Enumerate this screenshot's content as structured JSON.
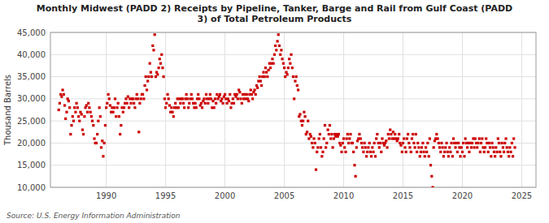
{
  "chart_data": {
    "type": "scatter",
    "title": "Monthly Midwest (PADD 2) Receipts by Pipeline, Tanker, Barge and Rail from Gulf Coast (PADD\n3) of Total Petroleum Products",
    "ylabel": "Thousand Barrels",
    "annotations": [
      "Source: U.S. Energy Information Administration"
    ],
    "color": "#cc0000",
    "marker": "square",
    "grid": true,
    "xlim": [
      1985.3,
      2026.2
    ],
    "ylim": [
      10000,
      45000
    ],
    "xticks": [
      1990,
      1995,
      2000,
      2005,
      2010,
      2015,
      2020,
      2025
    ],
    "yticks": [
      {
        "value": 10000,
        "label": "10,000"
      },
      {
        "value": 15000,
        "label": "15,000"
      },
      {
        "value": 20000,
        "label": "20,000"
      },
      {
        "value": 25000,
        "label": "25,000"
      },
      {
        "value": 30000,
        "label": "30,000"
      },
      {
        "value": 35000,
        "label": "35,000"
      },
      {
        "value": 40000,
        "label": "40,000"
      },
      {
        "value": 45000,
        "label": "45,000"
      }
    ],
    "x": [
      1986.0,
      1986.08,
      1986.17,
      1986.25,
      1986.33,
      1986.42,
      1986.5,
      1986.58,
      1986.67,
      1986.75,
      1986.83,
      1986.92,
      1987.0,
      1987.08,
      1987.17,
      1987.25,
      1987.33,
      1987.42,
      1987.5,
      1987.58,
      1987.67,
      1987.75,
      1987.83,
      1987.92,
      1988.0,
      1988.08,
      1988.17,
      1988.25,
      1988.33,
      1988.42,
      1988.5,
      1988.58,
      1988.67,
      1988.75,
      1988.83,
      1988.92,
      1989.0,
      1989.08,
      1989.17,
      1989.25,
      1989.33,
      1989.42,
      1989.5,
      1989.58,
      1989.67,
      1989.75,
      1989.83,
      1989.92,
      1990.0,
      1990.08,
      1990.17,
      1990.25,
      1990.33,
      1990.42,
      1990.5,
      1990.58,
      1990.67,
      1990.75,
      1990.83,
      1990.92,
      1991.0,
      1991.08,
      1991.17,
      1991.25,
      1991.33,
      1991.42,
      1991.5,
      1991.58,
      1991.67,
      1991.75,
      1991.83,
      1991.92,
      1992.0,
      1992.08,
      1992.17,
      1992.25,
      1992.33,
      1992.42,
      1992.5,
      1992.58,
      1992.67,
      1992.75,
      1992.83,
      1992.92,
      1993.0,
      1993.08,
      1993.17,
      1993.25,
      1993.33,
      1993.42,
      1993.5,
      1993.58,
      1993.67,
      1993.75,
      1993.83,
      1993.92,
      1994.0,
      1994.08,
      1994.17,
      1994.25,
      1994.33,
      1994.42,
      1994.5,
      1994.58,
      1994.67,
      1994.75,
      1994.83,
      1994.92,
      1995.0,
      1995.08,
      1995.17,
      1995.25,
      1995.33,
      1995.42,
      1995.5,
      1995.58,
      1995.67,
      1995.75,
      1995.83,
      1995.92,
      1996.0,
      1996.08,
      1996.17,
      1996.25,
      1996.33,
      1996.42,
      1996.5,
      1996.58,
      1996.67,
      1996.75,
      1996.83,
      1996.92,
      1997.0,
      1997.08,
      1997.17,
      1997.25,
      1997.33,
      1997.42,
      1997.5,
      1997.58,
      1997.67,
      1997.75,
      1997.83,
      1997.92,
      1998.0,
      1998.08,
      1998.17,
      1998.25,
      1998.33,
      1998.42,
      1998.5,
      1998.58,
      1998.67,
      1998.75,
      1998.83,
      1998.92,
      1999.0,
      1999.08,
      1999.17,
      1999.25,
      1999.33,
      1999.42,
      1999.5,
      1999.58,
      1999.67,
      1999.75,
      1999.83,
      1999.92,
      2000.0,
      2000.08,
      2000.17,
      2000.25,
      2000.33,
      2000.42,
      2000.5,
      2000.58,
      2000.67,
      2000.75,
      2000.83,
      2000.92,
      2001.0,
      2001.08,
      2001.17,
      2001.25,
      2001.33,
      2001.42,
      2001.5,
      2001.58,
      2001.67,
      2001.75,
      2001.83,
      2001.92,
      2002.0,
      2002.08,
      2002.17,
      2002.25,
      2002.33,
      2002.42,
      2002.5,
      2002.58,
      2002.67,
      2002.75,
      2002.83,
      2002.92,
      2003.0,
      2003.08,
      2003.17,
      2003.25,
      2003.33,
      2003.42,
      2003.5,
      2003.58,
      2003.67,
      2003.75,
      2003.83,
      2003.92,
      2004.0,
      2004.08,
      2004.17,
      2004.25,
      2004.33,
      2004.42,
      2004.5,
      2004.58,
      2004.67,
      2004.75,
      2004.83,
      2004.92,
      2005.0,
      2005.08,
      2005.17,
      2005.25,
      2005.33,
      2005.42,
      2005.5,
      2005.58,
      2005.67,
      2005.75,
      2005.83,
      2005.92,
      2006.0,
      2006.08,
      2006.17,
      2006.25,
      2006.33,
      2006.42,
      2006.5,
      2006.58,
      2006.67,
      2006.75,
      2006.83,
      2006.92,
      2007.0,
      2007.08,
      2007.17,
      2007.25,
      2007.33,
      2007.42,
      2007.5,
      2007.58,
      2007.67,
      2007.75,
      2007.83,
      2007.92,
      2008.0,
      2008.08,
      2008.17,
      2008.25,
      2008.33,
      2008.42,
      2008.5,
      2008.58,
      2008.67,
      2008.75,
      2008.83,
      2008.92,
      2009.0,
      2009.08,
      2009.17,
      2009.25,
      2009.33,
      2009.42,
      2009.5,
      2009.58,
      2009.67,
      2009.75,
      2009.83,
      2009.92,
      2010.0,
      2010.08,
      2010.17,
      2010.25,
      2010.33,
      2010.42,
      2010.5,
      2010.58,
      2010.67,
      2010.75,
      2010.83,
      2010.92,
      2011.0,
      2011.08,
      2011.17,
      2011.25,
      2011.33,
      2011.42,
      2011.5,
      2011.58,
      2011.67,
      2011.75,
      2011.83,
      2011.92,
      2012.0,
      2012.08,
      2012.17,
      2012.25,
      2012.33,
      2012.42,
      2012.5,
      2012.58,
      2012.67,
      2012.75,
      2012.83,
      2012.92,
      2013.0,
      2013.08,
      2013.17,
      2013.25,
      2013.33,
      2013.42,
      2013.5,
      2013.58,
      2013.67,
      2013.75,
      2013.83,
      2013.92,
      2014.0,
      2014.08,
      2014.17,
      2014.25,
      2014.33,
      2014.42,
      2014.5,
      2014.58,
      2014.67,
      2014.75,
      2014.83,
      2014.92,
      2015.0,
      2015.08,
      2015.17,
      2015.25,
      2015.33,
      2015.42,
      2015.5,
      2015.58,
      2015.67,
      2015.75,
      2015.83,
      2015.92,
      2016.0,
      2016.08,
      2016.17,
      2016.25,
      2016.33,
      2016.42,
      2016.5,
      2016.58,
      2016.67,
      2016.75,
      2016.83,
      2016.92,
      2017.0,
      2017.08,
      2017.17,
      2017.25,
      2017.33,
      2017.42,
      2017.5,
      2017.58,
      2017.67,
      2017.75,
      2017.83,
      2017.92,
      2018.0,
      2018.08,
      2018.17,
      2018.25,
      2018.33,
      2018.42,
      2018.5,
      2018.58,
      2018.67,
      2018.75,
      2018.83,
      2018.92,
      2019.0,
      2019.08,
      2019.17,
      2019.25,
      2019.33,
      2019.42,
      2019.5,
      2019.58,
      2019.67,
      2019.75,
      2019.83,
      2019.92,
      2020.0,
      2020.08,
      2020.17,
      2020.25,
      2020.33,
      2020.42,
      2020.5,
      2020.58,
      2020.67,
      2020.75,
      2020.83,
      2020.92,
      2021.0,
      2021.08,
      2021.17,
      2021.25,
      2021.33,
      2021.42,
      2021.5,
      2021.58,
      2021.67,
      2021.75,
      2021.83,
      2021.92,
      2022.0,
      2022.08,
      2022.17,
      2022.25,
      2022.33,
      2022.42,
      2022.5,
      2022.58,
      2022.67,
      2022.75,
      2022.83,
      2022.92,
      2023.0,
      2023.08,
      2023.17,
      2023.25,
      2023.33,
      2023.42,
      2023.5,
      2023.58,
      2023.67,
      2023.75,
      2023.83,
      2023.92,
      2024.0,
      2024.08,
      2024.17,
      2024.25,
      2024.33,
      2024.42
    ],
    "values": [
      27500,
      29000,
      31000,
      30500,
      32000,
      31000,
      28500,
      25500,
      27000,
      30000,
      29500,
      28000,
      22000,
      24000,
      26000,
      25000,
      28000,
      27000,
      29000,
      28000,
      26000,
      25000,
      27000,
      26500,
      23000,
      22000,
      26000,
      28000,
      28500,
      27000,
      29000,
      28000,
      27000,
      26000,
      25000,
      24000,
      21000,
      20000,
      20000,
      22000,
      25000,
      28000,
      26000,
      19000,
      20500,
      17000,
      20000,
      24000,
      28000,
      29000,
      31000,
      30000,
      28500,
      27000,
      28000,
      27000,
      28000,
      30000,
      26000,
      28000,
      29000,
      26000,
      22000,
      24000,
      28000,
      27000,
      28000,
      29000,
      30000,
      29000,
      30500,
      28000,
      30000,
      29000,
      30000,
      30000,
      29000,
      28000,
      30000,
      31000,
      30000,
      22500,
      29000,
      30000,
      31000,
      31000,
      30000,
      33000,
      35000,
      32000,
      34000,
      35000,
      38000,
      36000,
      35000,
      42000,
      41000,
      44500,
      35000,
      36000,
      35500,
      37000,
      39000,
      38000,
      40000,
      37000,
      35000,
      30000,
      28000,
      29000,
      31000,
      30000,
      28500,
      27000,
      28000,
      27000,
      26000,
      28000,
      29000,
      28000,
      30000,
      28000,
      30000,
      29000,
      30000,
      30000,
      29000,
      28000,
      30000,
      31000,
      30000,
      28000,
      29000,
      30000,
      31000,
      30000,
      29000,
      28000,
      29000,
      28000,
      30000,
      31000,
      30000,
      28500,
      29000,
      28000,
      29500,
      30000,
      29000,
      31000,
      30000,
      29000,
      30000,
      31000,
      30000,
      28000,
      29500,
      28000,
      30000,
      29000,
      31000,
      30000,
      30500,
      31000,
      29500,
      30000,
      29000,
      30500,
      31000,
      30000,
      29000,
      30000,
      29500,
      31000,
      28000,
      29000,
      30000,
      29000,
      31000,
      30500,
      31000,
      30000,
      32000,
      31500,
      30000,
      29000,
      31000,
      30000,
      31000,
      30000,
      31000,
      30000,
      29500,
      31000,
      32000,
      31000,
      30000,
      31500,
      32000,
      31000,
      33000,
      32500,
      34000,
      35000,
      34000,
      33000,
      35000,
      36000,
      35000,
      37000,
      36000,
      35000,
      36500,
      38000,
      37000,
      38000,
      39000,
      38000,
      40000,
      42000,
      41000,
      43000,
      44500,
      42000,
      40000,
      41000,
      39000,
      38000,
      37000,
      35000,
      36000,
      35500,
      37000,
      39000,
      38000,
      40000,
      37000,
      35000,
      30000,
      34000,
      35000,
      33000,
      32000,
      26000,
      26500,
      25000,
      24000,
      25000,
      27000,
      26000,
      22000,
      22500,
      25000,
      21000,
      22000,
      21500,
      20000,
      19000,
      21000,
      20000,
      14000,
      18000,
      19000,
      21000,
      22000,
      19000,
      17000,
      18000,
      21000,
      24000,
      19000,
      20000,
      23000,
      22000,
      24000,
      21000,
      22000,
      19000,
      21000,
      22000,
      21500,
      22000,
      21500,
      22000,
      20000,
      19500,
      18000,
      20000,
      21000,
      19000,
      18000,
      21000,
      22000,
      20000,
      21000,
      22000,
      20000,
      20000,
      18000,
      15000,
      12500,
      19000,
      20500,
      21000,
      22000,
      21000,
      20000,
      19000,
      18000,
      20000,
      19000,
      17000,
      18000,
      19000,
      20000,
      18000,
      17000,
      19000,
      18000,
      20000,
      17000,
      21000,
      22000,
      20000,
      19000,
      20000,
      18000,
      21000,
      20000,
      19500,
      20000,
      20500,
      19000,
      22000,
      21000,
      23000,
      22000,
      21000,
      22500,
      21000,
      22000,
      21000,
      20500,
      21000,
      22000,
      20000,
      19500,
      18000,
      20000,
      21000,
      19000,
      18000,
      21000,
      22000,
      20000,
      19000,
      18000,
      21000,
      22000,
      20000,
      19000,
      22000,
      18000,
      20000,
      19000,
      17000,
      18000,
      19000,
      20000,
      18000,
      17000,
      19000,
      18000,
      20000,
      17000,
      21000,
      15000,
      12500,
      10000,
      19000,
      20500,
      21000,
      22000,
      21000,
      20000,
      19000,
      18000,
      20000,
      19000,
      17000,
      18000,
      19000,
      20000,
      18000,
      17000,
      19000,
      18000,
      20000,
      17000,
      21000,
      20000,
      19000,
      20000,
      18000,
      20000,
      19000,
      17000,
      19000,
      18000,
      20000,
      17000,
      21000,
      20000,
      19000,
      20000,
      18000,
      20000,
      19000,
      20000,
      21000,
      19000,
      21000,
      20000,
      19000,
      20000,
      21000,
      18000,
      20000,
      21000,
      19000,
      18000,
      19000,
      21000,
      20000,
      18000,
      20000,
      19000,
      17000,
      20000,
      19000,
      18000,
      17000,
      19000,
      18000,
      21000,
      20000,
      18000,
      17000,
      20000,
      19000,
      18000,
      20000,
      21000,
      19000,
      18000,
      17000,
      19000,
      18000,
      20000,
      17000,
      21000,
      19000
    ]
  }
}
